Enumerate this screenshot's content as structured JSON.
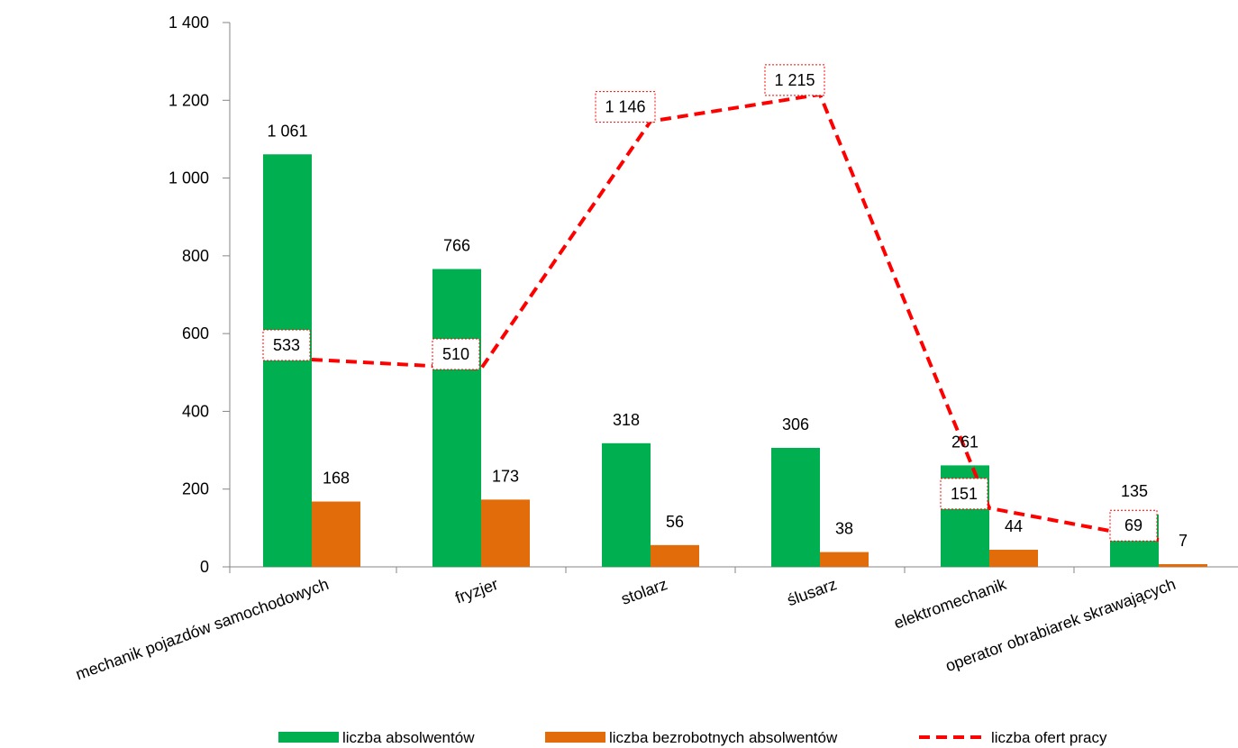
{
  "chart_data": {
    "type": "bar",
    "categories": [
      "mechanik pojazdów samochodowych",
      "fryzjer",
      "stolarz",
      "ślusarz",
      "elektromechanik",
      "operator obrabiarek skrawających"
    ],
    "series": [
      {
        "name": "liczba absolwentów",
        "kind": "bar",
        "color": "#00b050",
        "values": [
          1061,
          766,
          318,
          306,
          261,
          135
        ],
        "labels": [
          "1 061",
          "766",
          "318",
          "306",
          "261",
          "135"
        ]
      },
      {
        "name": "liczba bezrobotnych absolwentów",
        "kind": "bar",
        "color": "#e36c0a",
        "values": [
          168,
          173,
          56,
          38,
          44,
          7
        ],
        "labels": [
          "168",
          "173",
          "56",
          "38",
          "44",
          "7"
        ]
      },
      {
        "name": "liczba ofert pracy",
        "kind": "line",
        "style": "dashed",
        "color": "#ff0000",
        "values": [
          533,
          510,
          1146,
          1215,
          151,
          69
        ],
        "labels": [
          "533",
          "510",
          "1 146",
          "1 215",
          "151",
          "69"
        ]
      }
    ],
    "ylim": [
      0,
      1400
    ],
    "yticks": [
      0,
      200,
      400,
      600,
      800,
      1000,
      1200,
      1400
    ],
    "ytick_labels": [
      "0",
      "200",
      "400",
      "600",
      "800",
      "1 000",
      "1 200",
      "1 400"
    ],
    "grid": false,
    "legend_position": "bottom"
  }
}
